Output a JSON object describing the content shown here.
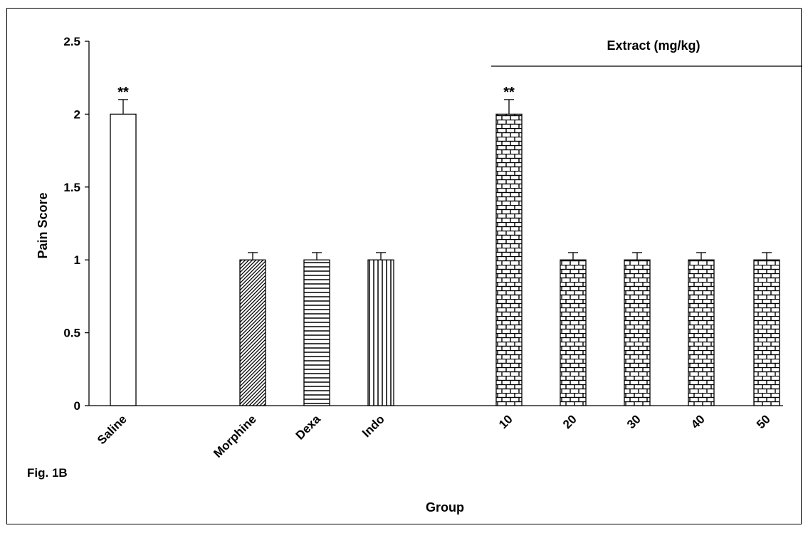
{
  "figure_label": "Fig. 1B",
  "chart_data": {
    "type": "bar",
    "title": "",
    "xlabel": "Group",
    "ylabel": "Pain Score",
    "ylim": [
      0,
      2.5
    ],
    "y_ticks": [
      0,
      0.5,
      1,
      1.5,
      2,
      2.5
    ],
    "y_tick_labels": [
      "0",
      "0.5",
      "1",
      "1.5",
      "2",
      "2.5"
    ],
    "group_label": "Extract (mg/kg)",
    "categories": [
      "Saline",
      "Morphine",
      "Dexa",
      "Indo",
      "10",
      "20",
      "30",
      "40",
      "50"
    ],
    "values": [
      2,
      1,
      1,
      1,
      2,
      1,
      1,
      1,
      1
    ],
    "error": [
      0.1,
      0.05,
      0.05,
      0.05,
      0.1,
      0.05,
      0.05,
      0.05,
      0.05
    ],
    "significance": [
      "**",
      "",
      "",
      "",
      "**",
      "",
      "",
      "",
      ""
    ],
    "fills": [
      "none",
      "diagonal",
      "horizontal",
      "vertical",
      "brick",
      "brick",
      "brick",
      "brick",
      "brick"
    ],
    "grid": false,
    "legend": "none"
  }
}
